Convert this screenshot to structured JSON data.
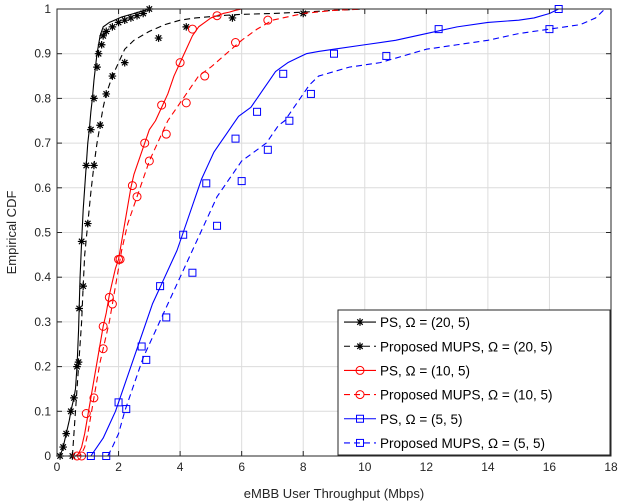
{
  "chart_data": {
    "type": "line",
    "title": "",
    "xlabel": "eMBB User Throughput  (Mbps)",
    "ylabel": "Empirical CDF",
    "xlim": [
      0,
      18
    ],
    "ylim": [
      0,
      1
    ],
    "xticks": [
      "0",
      "2",
      "4",
      "6",
      "8",
      "10",
      "12",
      "14",
      "16",
      "18"
    ],
    "yticks": [
      "0",
      "0.1",
      "0.2",
      "0.3",
      "0.4",
      "0.5",
      "0.6",
      "0.7",
      "0.8",
      "0.9",
      "1"
    ],
    "grid": true,
    "legend_position": "bottom-right",
    "series": [
      {
        "name": "PS, Ω = (20, 5)",
        "color": "#000000",
        "dash": "solid",
        "marker": "star",
        "x": [
          0.1,
          0.2,
          0.3,
          0.4,
          0.45,
          0.55,
          0.6,
          0.65,
          0.7,
          0.72,
          0.75,
          0.8,
          0.85,
          0.9,
          0.95,
          1.0,
          1.05,
          1.1,
          1.15,
          1.2,
          1.25,
          1.3,
          1.35,
          1.4,
          1.45,
          1.5,
          1.6,
          1.7,
          1.8,
          1.9,
          2.0,
          2.1,
          2.2,
          2.3,
          2.4,
          2.5,
          2.6,
          2.7,
          2.8,
          2.9,
          3.0
        ],
        "y": [
          0.0,
          0.02,
          0.05,
          0.08,
          0.1,
          0.13,
          0.15,
          0.2,
          0.28,
          0.33,
          0.4,
          0.48,
          0.55,
          0.6,
          0.65,
          0.7,
          0.73,
          0.77,
          0.8,
          0.84,
          0.87,
          0.9,
          0.92,
          0.94,
          0.95,
          0.96,
          0.965,
          0.97,
          0.973,
          0.976,
          0.979,
          0.982,
          0.984,
          0.986,
          0.988,
          0.99,
          0.992,
          0.994,
          0.996,
          0.998,
          1.0
        ],
        "markers_x": [
          0.1,
          0.2,
          0.3,
          0.45,
          0.55,
          0.65,
          0.72,
          0.8,
          0.95,
          1.1,
          1.2,
          1.3,
          1.35,
          1.45,
          1.5,
          1.6,
          1.8,
          2.0,
          2.2,
          2.4,
          2.6,
          2.8,
          3.0
        ],
        "markers_y": [
          0.0,
          0.02,
          0.05,
          0.1,
          0.13,
          0.2,
          0.33,
          0.48,
          0.65,
          0.73,
          0.8,
          0.87,
          0.9,
          0.92,
          0.94,
          0.95,
          0.96,
          0.97,
          0.975,
          0.98,
          0.985,
          0.99,
          1.0
        ]
      },
      {
        "name": "Proposed MUPS, Ω = (20, 5)",
        "color": "#000000",
        "dash": "dashed",
        "marker": "star",
        "x": [
          0.5,
          0.55,
          0.6,
          0.65,
          0.7,
          0.75,
          0.8,
          0.85,
          0.9,
          1.0,
          1.1,
          1.2,
          1.3,
          1.4,
          1.5,
          1.6,
          1.8,
          2.0,
          2.2,
          2.5,
          3.0,
          3.5,
          4.0,
          4.5,
          5.0,
          5.5,
          6.0,
          7.0,
          8.0,
          9.0,
          10.0
        ],
        "y": [
          0.0,
          0.05,
          0.1,
          0.15,
          0.2,
          0.25,
          0.3,
          0.38,
          0.45,
          0.52,
          0.59,
          0.65,
          0.7,
          0.74,
          0.78,
          0.81,
          0.85,
          0.88,
          0.91,
          0.93,
          0.95,
          0.965,
          0.975,
          0.98,
          0.983,
          0.986,
          0.988,
          0.99,
          0.993,
          0.997,
          1.0
        ],
        "markers_x": [
          0.5,
          0.7,
          0.85,
          1.0,
          1.2,
          1.4,
          1.6,
          1.8,
          2.2,
          3.3,
          4.2,
          5.7,
          8.0
        ],
        "markers_y": [
          0.0,
          0.21,
          0.38,
          0.52,
          0.65,
          0.74,
          0.81,
          0.85,
          0.88,
          0.935,
          0.96,
          0.98,
          0.99
        ]
      },
      {
        "name": "PS, Ω = (10, 5)",
        "color": "#ff0000",
        "dash": "solid",
        "marker": "circle",
        "x": [
          0.5,
          0.6,
          0.7,
          0.8,
          0.9,
          1.0,
          1.1,
          1.2,
          1.3,
          1.4,
          1.5,
          1.6,
          1.7,
          1.8,
          1.9,
          2.0,
          2.1,
          2.2,
          2.3,
          2.4,
          2.5,
          2.6,
          2.7,
          2.8,
          2.9,
          3.0,
          3.2,
          3.4,
          3.6,
          3.8,
          4.0,
          4.2,
          4.4,
          4.6,
          4.8,
          5.0,
          5.2,
          5.4,
          5.6,
          5.8,
          6.0
        ],
        "y": [
          0.0,
          0.0,
          0.005,
          0.02,
          0.05,
          0.09,
          0.13,
          0.17,
          0.21,
          0.25,
          0.29,
          0.32,
          0.36,
          0.39,
          0.42,
          0.44,
          0.48,
          0.52,
          0.56,
          0.6,
          0.63,
          0.65,
          0.67,
          0.69,
          0.71,
          0.73,
          0.75,
          0.78,
          0.81,
          0.85,
          0.88,
          0.91,
          0.94,
          0.96,
          0.97,
          0.98,
          0.985,
          0.99,
          0.993,
          0.997,
          1.0
        ],
        "markers_x": [
          0.65,
          0.95,
          1.5,
          1.7,
          2.0,
          2.45,
          2.85,
          3.4,
          4.0,
          4.4,
          5.2
        ],
        "markers_y": [
          0.0,
          0.095,
          0.29,
          0.355,
          0.44,
          0.605,
          0.7,
          0.785,
          0.88,
          0.955,
          0.985
        ]
      },
      {
        "name": "Proposed MUPS, Ω = (10, 5)",
        "color": "#ff0000",
        "dash": "dashed",
        "marker": "circle",
        "x": [
          0.6,
          0.7,
          0.8,
          0.9,
          1.0,
          1.1,
          1.2,
          1.3,
          1.4,
          1.5,
          1.6,
          1.7,
          1.8,
          1.9,
          2.0,
          2.1,
          2.2,
          2.3,
          2.4,
          2.5,
          2.6,
          2.7,
          2.8,
          2.9,
          3.0,
          3.2,
          3.4,
          3.6,
          3.8,
          4.0,
          4.2,
          4.4,
          4.6,
          4.8,
          5.0,
          5.5,
          6.0,
          6.5,
          7.0,
          8.0,
          9.0,
          10.0
        ],
        "y": [
          0.0,
          0.0,
          0.005,
          0.02,
          0.05,
          0.09,
          0.13,
          0.17,
          0.21,
          0.24,
          0.27,
          0.3,
          0.34,
          0.38,
          0.42,
          0.46,
          0.49,
          0.52,
          0.54,
          0.56,
          0.58,
          0.6,
          0.62,
          0.64,
          0.66,
          0.69,
          0.72,
          0.75,
          0.77,
          0.79,
          0.81,
          0.83,
          0.85,
          0.86,
          0.87,
          0.9,
          0.93,
          0.955,
          0.975,
          0.99,
          0.997,
          1.0
        ],
        "markers_x": [
          0.8,
          1.2,
          1.5,
          1.8,
          2.05,
          2.6,
          3.0,
          3.55,
          4.2,
          4.8,
          5.8,
          6.85
        ],
        "markers_y": [
          0.0,
          0.13,
          0.24,
          0.34,
          0.44,
          0.58,
          0.66,
          0.72,
          0.79,
          0.85,
          0.925,
          0.975
        ]
      },
      {
        "name": "PS, Ω = (5, 5)",
        "color": "#0000ff",
        "dash": "solid",
        "marker": "square",
        "x": [
          1.1,
          1.3,
          1.5,
          1.7,
          1.9,
          2.1,
          2.3,
          2.5,
          2.7,
          2.9,
          3.1,
          3.3,
          3.5,
          3.7,
          3.9,
          4.1,
          4.3,
          4.5,
          4.7,
          4.9,
          5.1,
          5.3,
          5.5,
          5.7,
          5.9,
          6.1,
          6.3,
          6.5,
          6.7,
          6.9,
          7.1,
          7.3,
          7.5,
          7.8,
          8.1,
          8.5,
          9.0,
          10.0,
          11.0,
          12.0,
          13.0,
          14.0,
          15.0,
          15.5,
          16.0,
          16.3
        ],
        "y": [
          0.0,
          0.02,
          0.04,
          0.07,
          0.1,
          0.14,
          0.18,
          0.22,
          0.26,
          0.3,
          0.34,
          0.37,
          0.4,
          0.43,
          0.46,
          0.5,
          0.54,
          0.58,
          0.62,
          0.65,
          0.68,
          0.7,
          0.72,
          0.74,
          0.76,
          0.77,
          0.78,
          0.8,
          0.82,
          0.84,
          0.86,
          0.87,
          0.88,
          0.89,
          0.9,
          0.905,
          0.91,
          0.92,
          0.93,
          0.945,
          0.96,
          0.97,
          0.975,
          0.98,
          0.99,
          1.0
        ],
        "markers_x": [
          1.1,
          2.0,
          2.75,
          3.35,
          4.1,
          4.85,
          5.8,
          6.5,
          7.35,
          9.0,
          12.4,
          16.3
        ],
        "markers_y": [
          0.0,
          0.12,
          0.245,
          0.38,
          0.495,
          0.61,
          0.71,
          0.77,
          0.855,
          0.9,
          0.955,
          1.0
        ]
      },
      {
        "name": "Proposed MUPS, Ω = (5, 5)",
        "color": "#0000ff",
        "dash": "dashed",
        "marker": "square",
        "x": [
          1.65,
          1.8,
          2.0,
          2.2,
          2.4,
          2.6,
          2.8,
          3.0,
          3.2,
          3.4,
          3.6,
          3.8,
          4.0,
          4.2,
          4.4,
          4.6,
          4.8,
          5.0,
          5.2,
          5.4,
          5.6,
          5.8,
          6.0,
          6.2,
          6.4,
          6.6,
          6.8,
          7.0,
          7.2,
          7.4,
          7.6,
          7.8,
          8.0,
          8.2,
          8.5,
          9.0,
          9.5,
          10.0,
          10.5,
          11.0,
          11.5,
          12.0,
          13.0,
          14.0,
          15.0,
          16.0,
          17.0,
          17.5,
          17.8
        ],
        "y": [
          0.0,
          0.02,
          0.05,
          0.1,
          0.14,
          0.18,
          0.22,
          0.25,
          0.28,
          0.31,
          0.34,
          0.37,
          0.4,
          0.43,
          0.46,
          0.49,
          0.52,
          0.55,
          0.58,
          0.6,
          0.62,
          0.64,
          0.66,
          0.67,
          0.68,
          0.69,
          0.7,
          0.72,
          0.74,
          0.75,
          0.77,
          0.79,
          0.81,
          0.83,
          0.85,
          0.86,
          0.87,
          0.875,
          0.88,
          0.89,
          0.9,
          0.91,
          0.92,
          0.93,
          0.945,
          0.955,
          0.965,
          0.98,
          1.0
        ],
        "markers_x": [
          1.6,
          2.25,
          2.9,
          3.55,
          4.4,
          5.2,
          6.0,
          6.85,
          7.55,
          8.25,
          10.7,
          16.0
        ],
        "markers_y": [
          0.0,
          0.105,
          0.215,
          0.31,
          0.41,
          0.515,
          0.615,
          0.685,
          0.75,
          0.81,
          0.895,
          0.955
        ]
      }
    ]
  }
}
